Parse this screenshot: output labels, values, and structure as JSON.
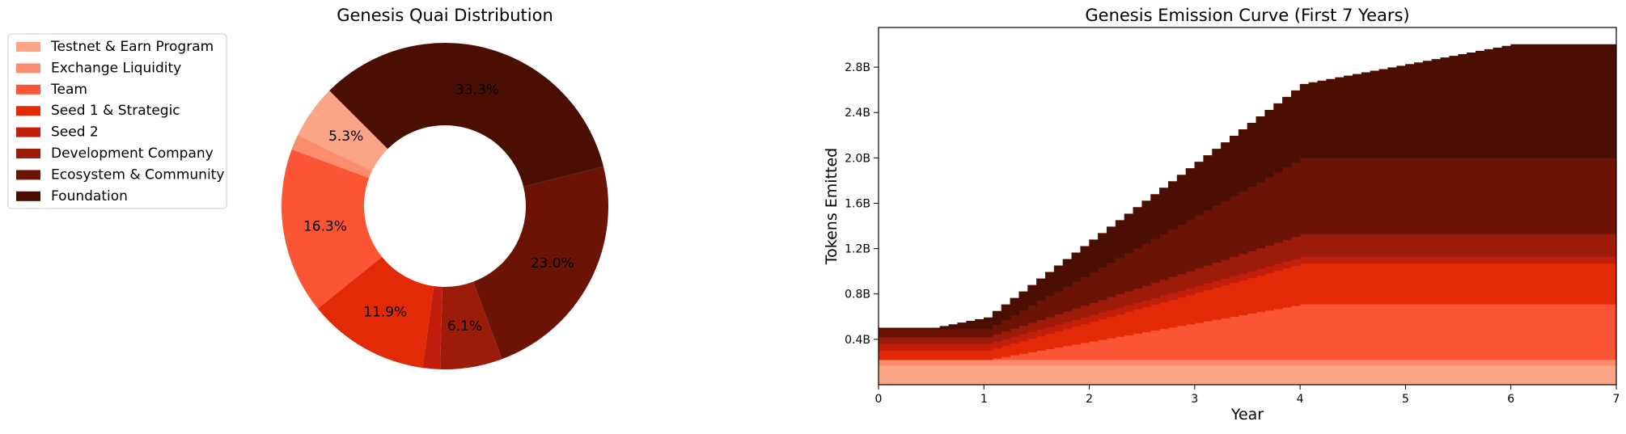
{
  "chart_data": [
    {
      "type": "pie",
      "title": "Genesis Quai Distribution",
      "donut": true,
      "legend_placement": "upper-left",
      "slices": [
        {
          "label": "Testnet & Earn Program",
          "value": 5.3,
          "pct_label": "5.3%",
          "color": "#fca487"
        },
        {
          "label": "Exchange Liquidity",
          "value": 1.5,
          "pct_label": "",
          "color": "#fb8c6e"
        },
        {
          "label": "Team",
          "value": 16.3,
          "pct_label": "16.3%",
          "color": "#fc5535"
        },
        {
          "label": "Seed 1 & Strategic",
          "value": 11.9,
          "pct_label": "11.9%",
          "color": "#e32a06"
        },
        {
          "label": "Seed 2",
          "value": 1.7,
          "pct_label": "",
          "color": "#c31e0b"
        },
        {
          "label": "Development Company",
          "value": 6.1,
          "pct_label": "6.1%",
          "color": "#9c1c09"
        },
        {
          "label": "Ecosystem & Community",
          "value": 23.0,
          "pct_label": "23.0%",
          "color": "#6b1406"
        },
        {
          "label": "Foundation",
          "value": 33.3,
          "pct_label": "33.3%",
          "color": "#4a0f02"
        }
      ]
    },
    {
      "type": "area",
      "stacked": true,
      "title": "Genesis Emission Curve (First 7 Years)",
      "xlabel": "Year",
      "ylabel": "Tokens Emitted",
      "xlim": [
        0,
        7
      ],
      "ylim": [
        0,
        3.15
      ],
      "xticks": [
        0,
        1,
        2,
        3,
        4,
        5,
        6,
        7
      ],
      "xtick_labels": [
        "0",
        "1",
        "2",
        "3",
        "4",
        "5",
        "6",
        "7"
      ],
      "yticks": [
        0.4,
        0.8,
        1.2,
        1.6,
        2.0,
        2.4,
        2.8
      ],
      "ytick_labels": [
        "0.4B",
        "0.8B",
        "1.2B",
        "1.6B",
        "2.0B",
        "2.4B",
        "2.8B"
      ],
      "grid": false,
      "step_per_year": 12,
      "series": [
        {
          "color": "#fca487",
          "x": [
            0,
            7
          ],
          "y": [
            0.17,
            0.17
          ]
        },
        {
          "color": "#fb8c6e",
          "x": [
            0,
            7
          ],
          "y": [
            0.05,
            0.05
          ]
        },
        {
          "color": "#fc5535",
          "x": [
            0,
            1,
            4,
            7
          ],
          "y": [
            0.0,
            0.0,
            0.49,
            0.49
          ]
        },
        {
          "color": "#e32a06",
          "x": [
            0,
            1,
            4,
            7
          ],
          "y": [
            0.08,
            0.08,
            0.36,
            0.36
          ]
        },
        {
          "color": "#c31e0b",
          "x": [
            0,
            7
          ],
          "y": [
            0.06,
            0.06
          ]
        },
        {
          "color": "#9c1c09",
          "x": [
            0,
            1,
            4,
            7
          ],
          "y": [
            0.06,
            0.06,
            0.2,
            0.2
          ]
        },
        {
          "color": "#6b1406",
          "x": [
            0,
            1,
            4,
            7
          ],
          "y": [
            0.07,
            0.07,
            0.67,
            0.67
          ]
        },
        {
          "color": "#4a0f02",
          "x": [
            0,
            0.5,
            4,
            6,
            7
          ],
          "y": [
            0.01,
            0.01,
            0.65,
            1.0,
            1.0
          ]
        }
      ]
    }
  ]
}
